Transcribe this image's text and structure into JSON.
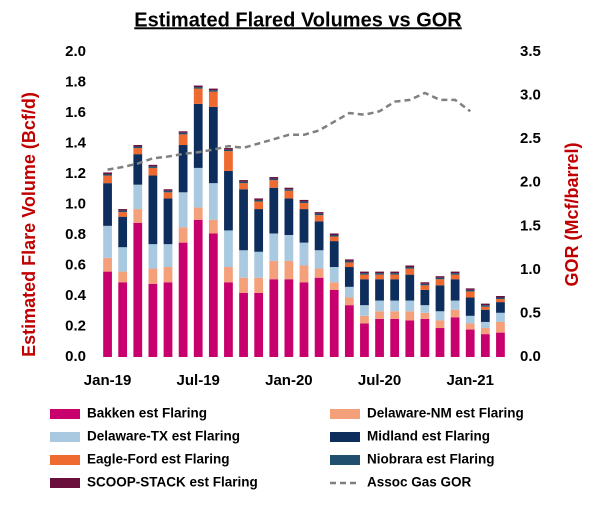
{
  "chart_data": {
    "type": "bar",
    "stacked": true,
    "title": "Estimated Flared Volumes vs GOR",
    "y_label": "Estimated Flare Volume (Bcf/d)",
    "y2_label": "GOR (Mcf/barrel)",
    "categories": [
      "Jan-19",
      null,
      null,
      null,
      null,
      null,
      "Jul-19",
      null,
      null,
      null,
      null,
      null,
      "Jan-20",
      null,
      null,
      null,
      null,
      null,
      "Jul-20",
      null,
      null,
      null,
      null,
      null,
      "Jan-21",
      null,
      null
    ],
    "ylim": [
      0,
      2
    ],
    "yticks": [
      {
        "value": 0,
        "label": "0.0"
      },
      {
        "value": 0.2,
        "label": "0.2"
      },
      {
        "value": 0.4,
        "label": "0.4"
      },
      {
        "value": 0.6,
        "label": "0.6"
      },
      {
        "value": 0.8,
        "label": "0.8"
      },
      {
        "value": 1,
        "label": "1.0"
      },
      {
        "value": 1.2,
        "label": "1.2"
      },
      {
        "value": 1.4,
        "label": "1.4"
      },
      {
        "value": 1.6,
        "label": "1.6"
      },
      {
        "value": 1.8,
        "label": "1.8"
      },
      {
        "value": 2,
        "label": "2.0"
      }
    ],
    "y2lim": [
      0,
      3.5
    ],
    "y2ticks": [
      {
        "value": 0,
        "label": "0.0"
      },
      0.5,
      {
        "value": 1,
        "label": "1.0"
      },
      1.5,
      {
        "value": 2,
        "label": "2.0"
      },
      2.5,
      {
        "value": 3,
        "label": "3.0"
      },
      3.5
    ],
    "series": [
      {
        "name": "Bakken est Flaring",
        "color": "#c8006e",
        "values": [
          0.56,
          0.49,
          0.88,
          0.48,
          0.49,
          0.75,
          0.9,
          0.81,
          0.49,
          0.42,
          0.42,
          0.51,
          0.51,
          0.49,
          0.52,
          0.44,
          0.34,
          0.22,
          0.25,
          0.25,
          0.24,
          0.25,
          0.19,
          0.26,
          0.18,
          0.15,
          0.16
        ]
      },
      {
        "name": "Delaware-NM est Flaring",
        "color": "#f4a07a",
        "values": [
          0.09,
          0.07,
          0.09,
          0.1,
          0.1,
          0.1,
          0.08,
          0.09,
          0.1,
          0.1,
          0.1,
          0.12,
          0.12,
          0.11,
          0.06,
          0.05,
          0.05,
          0.05,
          0.05,
          0.05,
          0.06,
          0.04,
          0.05,
          0.05,
          0.04,
          0.04,
          0.07
        ]
      },
      {
        "name": "Delaware-TX est Flaring",
        "color": "#a9c9e0",
        "values": [
          0.21,
          0.16,
          0.16,
          0.16,
          0.15,
          0.23,
          0.26,
          0.24,
          0.24,
          0.18,
          0.17,
          0.18,
          0.17,
          0.15,
          0.12,
          0.1,
          0.07,
          0.07,
          0.07,
          0.07,
          0.07,
          0.05,
          0.06,
          0.06,
          0.05,
          0.04,
          0.06
        ]
      },
      {
        "name": "Midland est Flaring",
        "color": "#0d2d5c",
        "values": [
          0.28,
          0.2,
          0.2,
          0.45,
          0.3,
          0.31,
          0.42,
          0.5,
          0.39,
          0.4,
          0.28,
          0.3,
          0.24,
          0.22,
          0.19,
          0.17,
          0.13,
          0.17,
          0.14,
          0.14,
          0.17,
          0.1,
          0.17,
          0.14,
          0.12,
          0.08,
          0.07
        ]
      },
      {
        "name": "Eagle-Ford est Flaring",
        "color": "#ee6a30",
        "values": [
          0.05,
          0.03,
          0.04,
          0.05,
          0.04,
          0.07,
          0.1,
          0.1,
          0.13,
          0.04,
          0.05,
          0.05,
          0.05,
          0.04,
          0.04,
          0.03,
          0.03,
          0.03,
          0.03,
          0.03,
          0.04,
          0.03,
          0.04,
          0.03,
          0.04,
          0.02,
          0.02
        ]
      },
      {
        "name": "Niobrara est Flaring",
        "color": "#1f4e6e",
        "values": [
          0.01,
          0.01,
          0.01,
          0.01,
          0.01,
          0.01,
          0.01,
          0.01,
          0.01,
          0.01,
          0.01,
          0.01,
          0.01,
          0.01,
          0.01,
          0.01,
          0.01,
          0.01,
          0.01,
          0.01,
          0.01,
          0.01,
          0.01,
          0.01,
          0.01,
          0.01,
          0.01
        ]
      },
      {
        "name": "SCOOP-STACK est Flaring",
        "color": "#6a0f3b",
        "values": [
          0.01,
          0.01,
          0.01,
          0.01,
          0.01,
          0.01,
          0.01,
          0.01,
          0.01,
          0.01,
          0.01,
          0.01,
          0.01,
          0.01,
          0.01,
          0.01,
          0.01,
          0.01,
          0.01,
          0.01,
          0.01,
          0.01,
          0.01,
          0.01,
          0.01,
          0.01,
          0.01
        ]
      },
      {
        "name": "Assoc Gas GOR",
        "color": "#808080",
        "type": "line",
        "dashed": true,
        "axis": "y2",
        "values": [
          2.15,
          2.18,
          2.22,
          2.28,
          2.3,
          2.33,
          2.35,
          2.38,
          2.42,
          2.4,
          2.45,
          2.5,
          2.55,
          2.55,
          2.6,
          2.7,
          2.8,
          2.78,
          2.82,
          2.93,
          2.95,
          3.03,
          2.95,
          2.95,
          2.82,
          null,
          null
        ]
      }
    ],
    "label_color": "#c00000"
  }
}
